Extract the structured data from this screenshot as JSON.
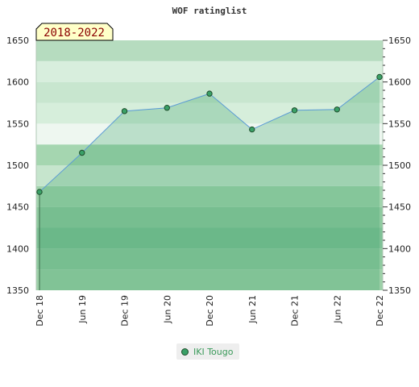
{
  "chart_data": {
    "type": "area",
    "title": "WOF ratinglist",
    "period_label": "2018-2022",
    "categories": [
      "Dec 18",
      "Jun 19",
      "Dec 19",
      "Jun 20",
      "Dec 20",
      "Jun 21",
      "Dec 21",
      "Jun 22",
      "Dec 22"
    ],
    "series": [
      {
        "name": "IKI Tougo",
        "values": [
          1468,
          1515,
          1565,
          1569,
          1586,
          1543,
          1566,
          1567,
          1606
        ]
      }
    ],
    "ylim": [
      1350,
      1650
    ],
    "y_ticks": [
      1350,
      1400,
      1450,
      1500,
      1550,
      1600,
      1650
    ],
    "xlabel": "",
    "ylabel": "",
    "grid": false,
    "legend_position": "bottom-center",
    "colors": {
      "line": "#5b9bd5",
      "marker_fill": "#3aa067",
      "marker_stroke": "#1e4d2b",
      "area_fill": "#3aa067",
      "legend_text": "#3a9a5a",
      "period_text": "#8b0000",
      "period_bg": "#ffffc8"
    }
  }
}
